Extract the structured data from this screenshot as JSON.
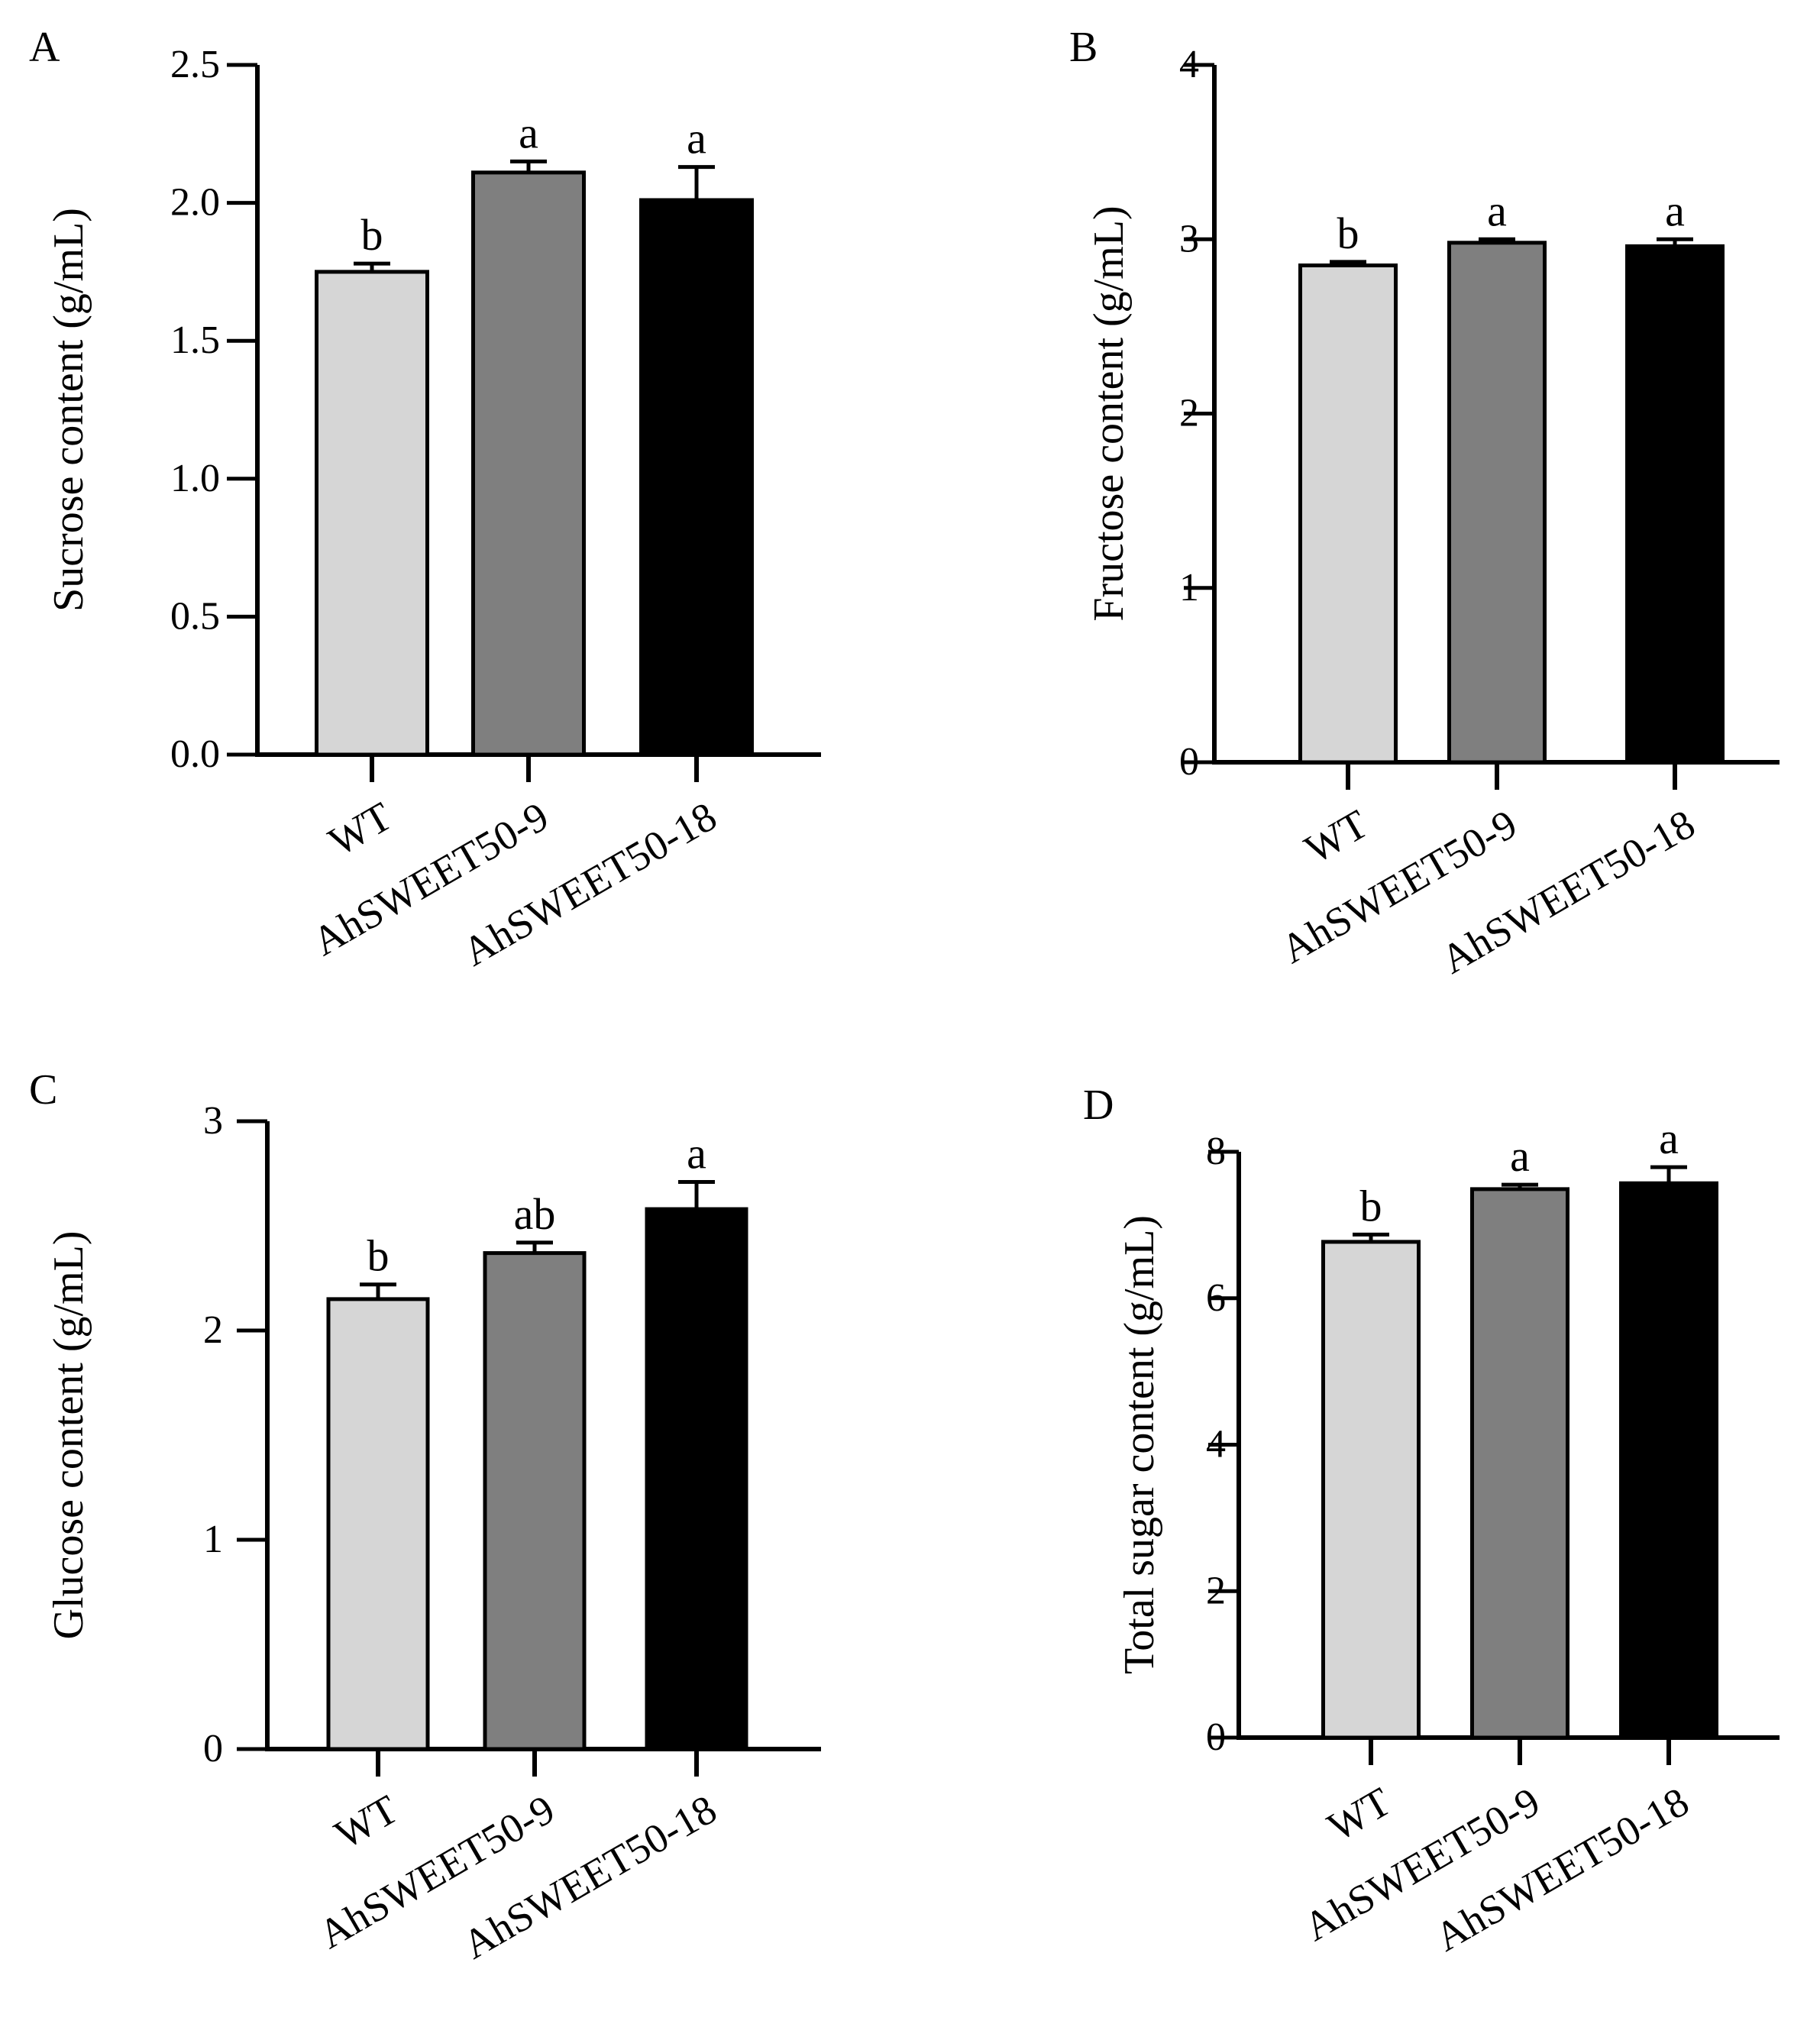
{
  "figure": {
    "categories": [
      "WT",
      "AhSWEET50-9",
      "AhSWEET50-18"
    ],
    "bar_colors": [
      "#d6d6d6",
      "#7f7f7f",
      "#000000"
    ]
  },
  "chart_data": [
    {
      "panel": "A",
      "type": "bar",
      "ylabel": "Sucrose content (g/mL)",
      "ylim": [
        0,
        2.5
      ],
      "ticks": [
        "0.0",
        "0.5",
        "1.0",
        "1.5",
        "2.0",
        "2.5"
      ],
      "categories": [
        "WT",
        "AhSWEET50-9",
        "AhSWEET50-18"
      ],
      "values": [
        1.75,
        2.11,
        2.01
      ],
      "errors": [
        0.03,
        0.04,
        0.12
      ],
      "letters": [
        "b",
        "a",
        "a"
      ]
    },
    {
      "panel": "B",
      "type": "bar",
      "ylabel": "Fructose content (g/mL)",
      "ylim": [
        0,
        4
      ],
      "ticks": [
        "0",
        "1",
        "2",
        "3",
        "4"
      ],
      "categories": [
        "WT",
        "AhSWEET50-9",
        "AhSWEET50-18"
      ],
      "values": [
        2.85,
        2.98,
        2.96
      ],
      "errors": [
        0.02,
        0.02,
        0.04
      ],
      "letters": [
        "b",
        "a",
        "a"
      ]
    },
    {
      "panel": "C",
      "type": "bar",
      "ylabel": "Glucose content (g/mL)",
      "ylim": [
        0,
        3
      ],
      "ticks": [
        "0",
        "1",
        "2",
        "3"
      ],
      "categories": [
        "WT",
        "AhSWEET50-9",
        "AhSWEET50-18"
      ],
      "values": [
        2.15,
        2.37,
        2.58
      ],
      "errors": [
        0.07,
        0.05,
        0.13
      ],
      "letters": [
        "b",
        "ab",
        "a"
      ]
    },
    {
      "panel": "D",
      "type": "bar",
      "ylabel": "Total sugar content (g/mL)",
      "ylim": [
        0,
        8
      ],
      "ticks": [
        "0",
        "2",
        "4",
        "6",
        "8"
      ],
      "categories": [
        "WT",
        "AhSWEET50-9",
        "AhSWEET50-18"
      ],
      "values": [
        6.77,
        7.49,
        7.57
      ],
      "errors": [
        0.1,
        0.06,
        0.22
      ],
      "letters": [
        "b",
        "a",
        "a"
      ]
    }
  ]
}
